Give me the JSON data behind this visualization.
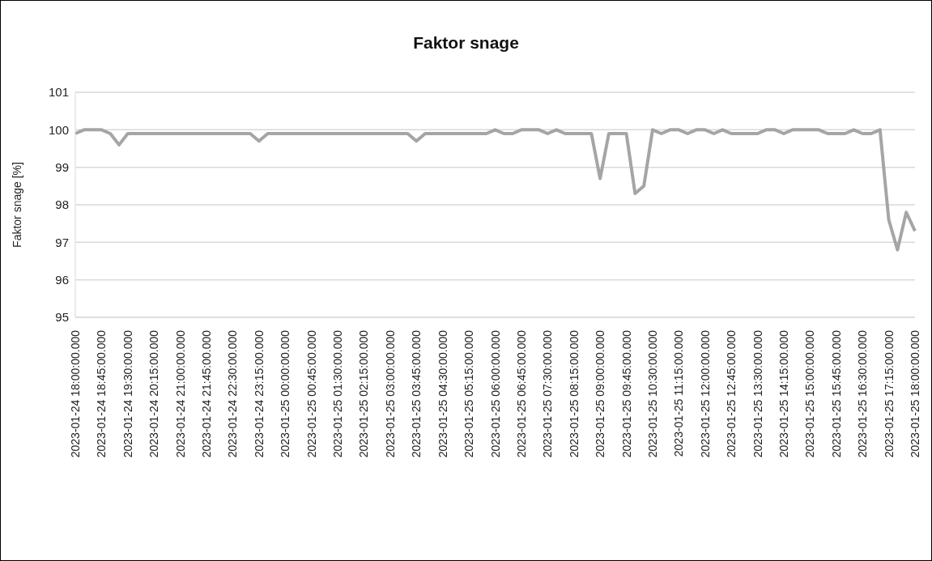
{
  "chart_data": {
    "type": "line",
    "title": "Faktor snage",
    "ylabel": "Faktor snage [%]",
    "categories": [
      "2023-01-24 18:00:00.000",
      null,
      null,
      "2023-01-24 18:45:00.000",
      null,
      null,
      "2023-01-24 19:30:00.000",
      null,
      null,
      "2023-01-24 20:15:00.000",
      null,
      null,
      "2023-01-24 21:00:00.000",
      null,
      null,
      "2023-01-24 21:45:00.000",
      null,
      null,
      "2023-01-24 22:30:00.000",
      null,
      null,
      "2023-01-24 23:15:00.000",
      null,
      null,
      "2023-01-25 00:00:00.000",
      null,
      null,
      "2023-01-25 00:45:00.000",
      null,
      null,
      "2023-01-25 01:30:00.000",
      null,
      null,
      "2023-01-25 02:15:00.000",
      null,
      null,
      "2023-01-25 03:00:00.000",
      null,
      null,
      "2023-01-25 03:45:00.000",
      null,
      null,
      "2023-01-25 04:30:00.000",
      null,
      null,
      "2023-01-25 05:15:00.000",
      null,
      null,
      "2023-01-25 06:00:00.000",
      null,
      null,
      "2023-01-25 06:45:00.000",
      null,
      null,
      "2023-01-25 07:30:00.000",
      null,
      null,
      "2023-01-25 08:15:00.000",
      null,
      null,
      "2023-01-25 09:00:00.000",
      null,
      null,
      "2023-01-25 09:45:00.000",
      null,
      null,
      "2023-01-25 10:30:00.000",
      null,
      null,
      "2023-01-25 11:15:00.000",
      null,
      null,
      "2023-01-25 12:00:00.000",
      null,
      null,
      "2023-01-25 12:45:00.000",
      null,
      null,
      "2023-01-25 13:30:00.000",
      null,
      null,
      "2023-01-25 14:15:00.000",
      null,
      null,
      "2023-01-25 15:00:00.000",
      null,
      null,
      "2023-01-25 15:45:00.000",
      null,
      null,
      "2023-01-25 16:30:00.000",
      null,
      null,
      "2023-01-25 17:15:00.000",
      null,
      null,
      "2023-01-25 18:00:00.000"
    ],
    "values": [
      99.9,
      100,
      100,
      100,
      99.9,
      99.6,
      99.9,
      99.9,
      99.9,
      99.9,
      99.9,
      99.9,
      99.9,
      99.9,
      99.9,
      99.9,
      99.9,
      99.9,
      99.9,
      99.9,
      99.9,
      99.7,
      99.9,
      99.9,
      99.9,
      99.9,
      99.9,
      99.9,
      99.9,
      99.9,
      99.9,
      99.9,
      99.9,
      99.9,
      99.9,
      99.9,
      99.9,
      99.9,
      99.9,
      99.7,
      99.9,
      99.9,
      99.9,
      99.9,
      99.9,
      99.9,
      99.9,
      99.9,
      100,
      99.9,
      99.9,
      100,
      100,
      100,
      99.9,
      100,
      99.9,
      99.9,
      99.9,
      99.9,
      98.7,
      99.9,
      99.9,
      99.9,
      98.3,
      98.5,
      100,
      99.9,
      100,
      100,
      99.9,
      100,
      100,
      99.9,
      100,
      99.9,
      99.9,
      99.9,
      99.9,
      100,
      100,
      99.9,
      100,
      100,
      100,
      100,
      99.9,
      99.9,
      99.9,
      100,
      99.9,
      99.9,
      100,
      97.6,
      96.8,
      97.8,
      97.3
    ],
    "color": "#a5a5a5",
    "ylim": [
      95,
      101
    ],
    "yticks": [
      95,
      96,
      97,
      98,
      99,
      100,
      101
    ],
    "grid": "y"
  }
}
